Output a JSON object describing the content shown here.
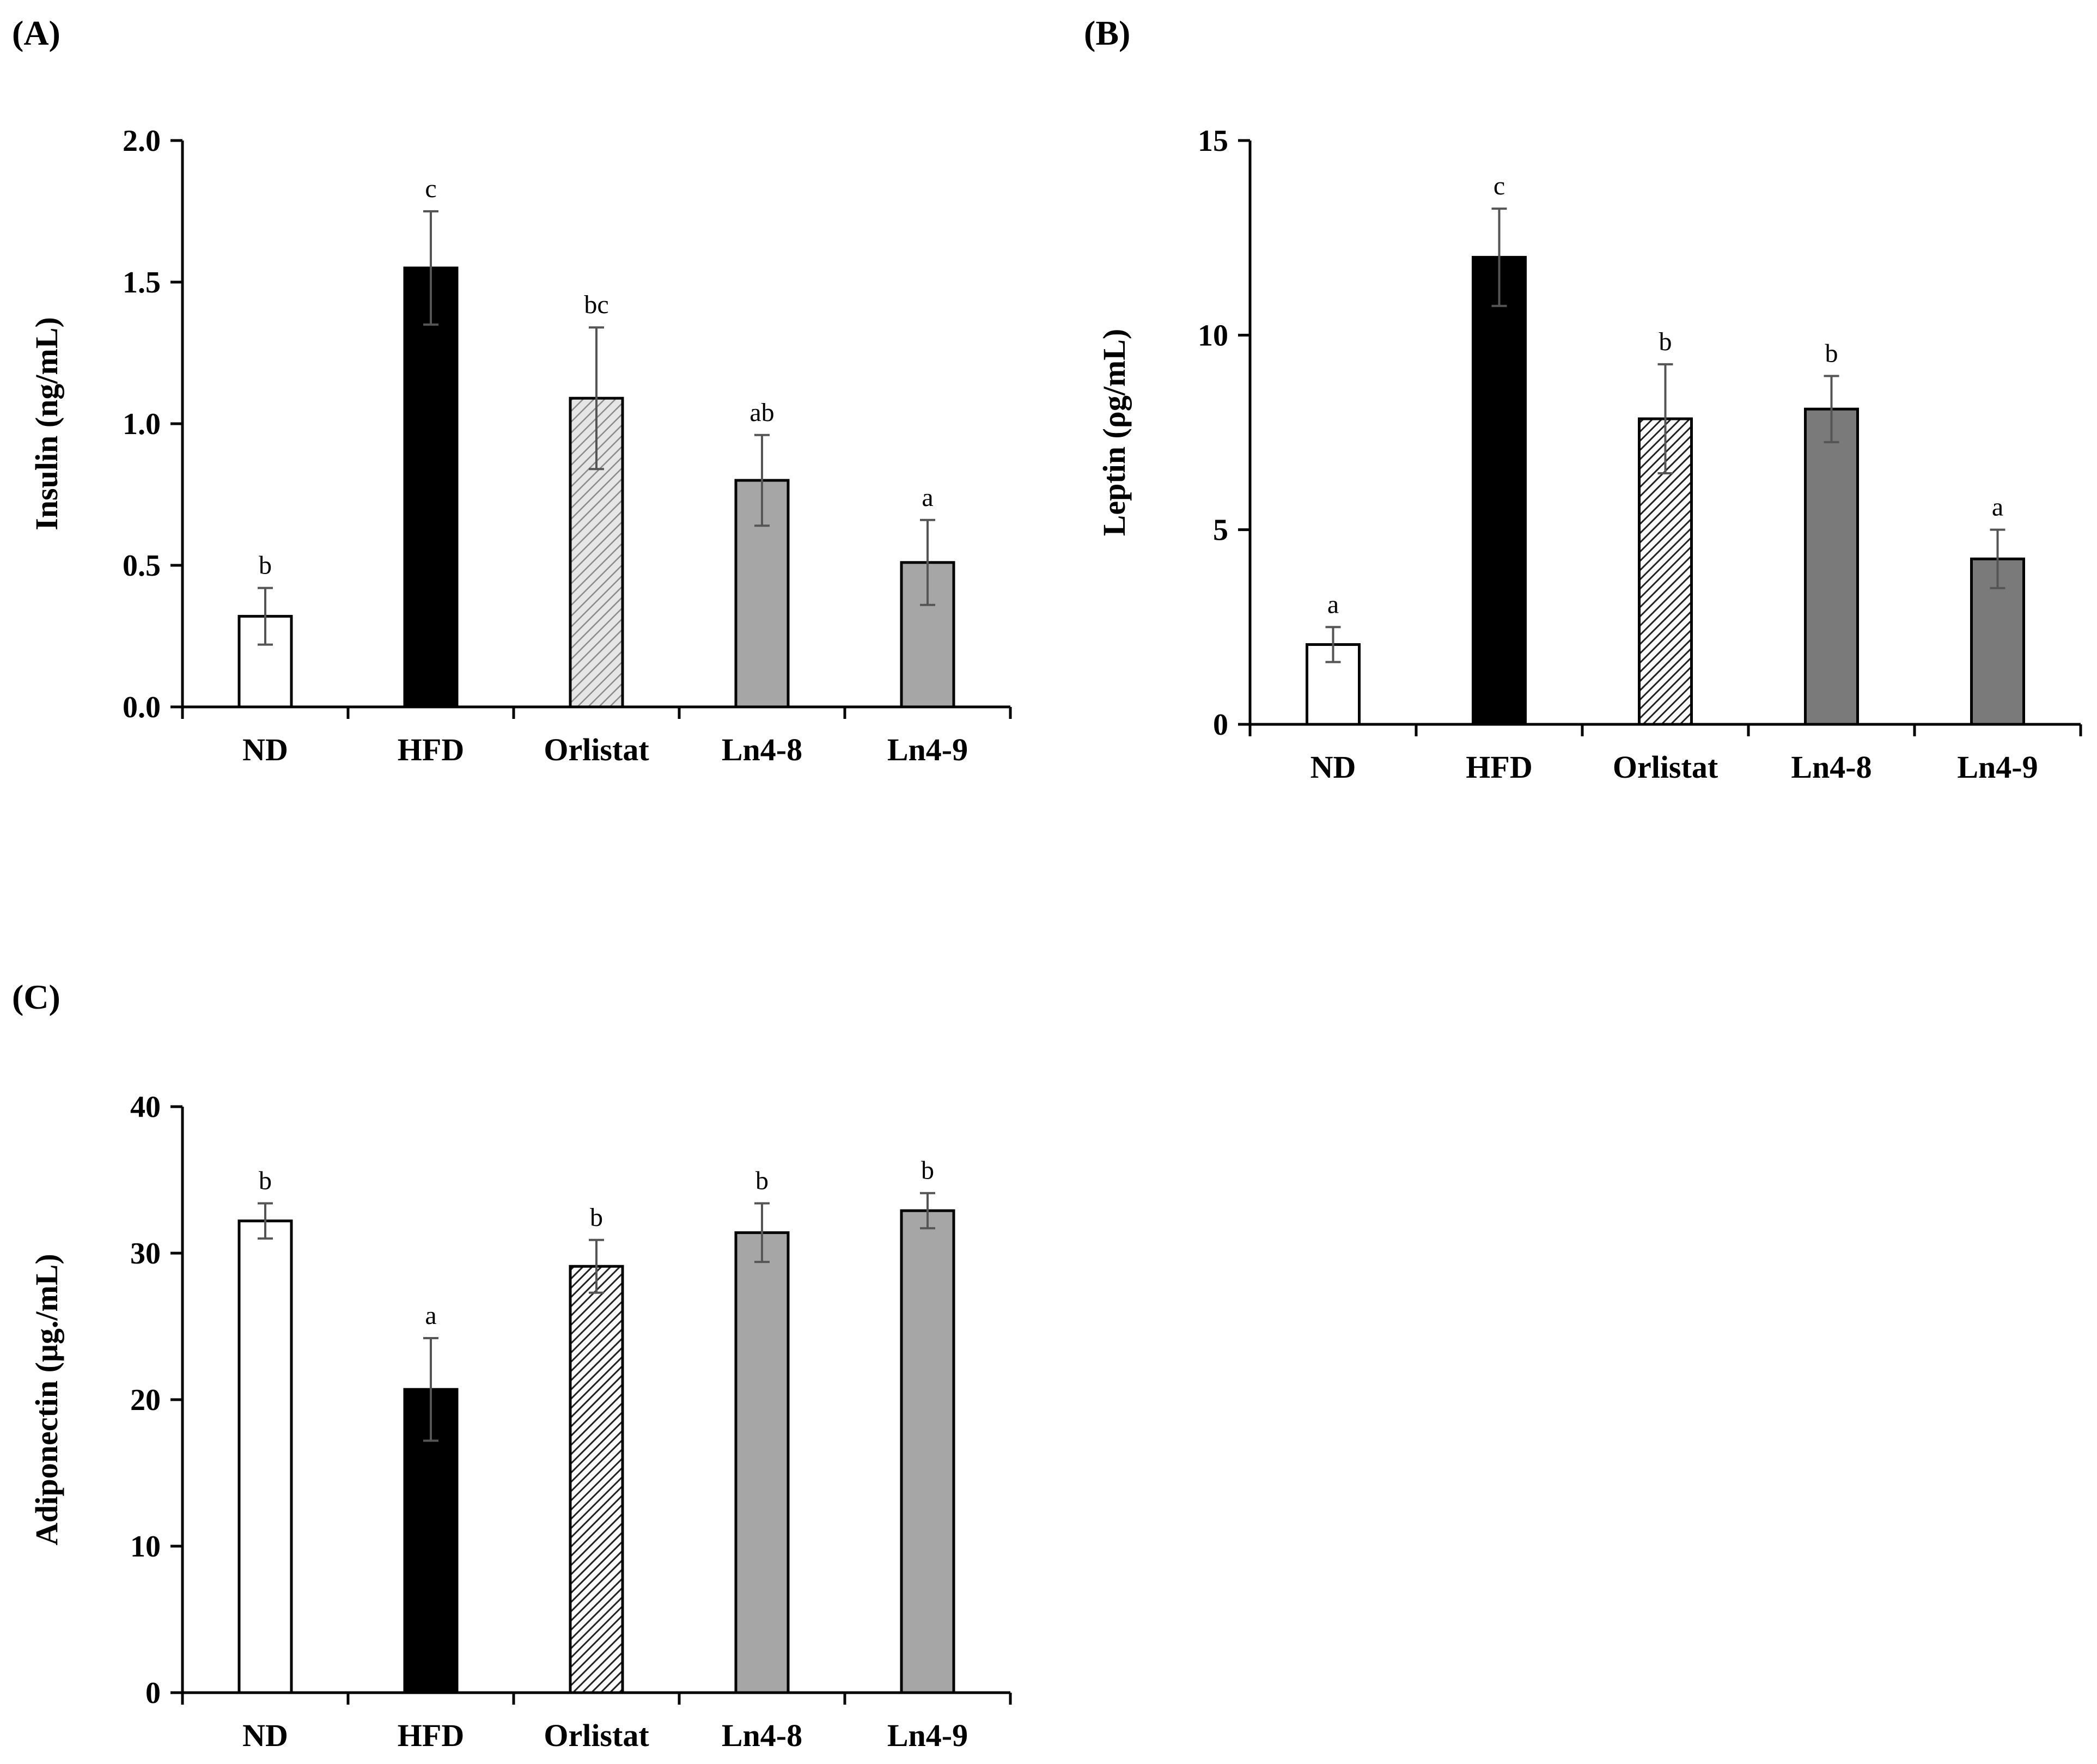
{
  "figure": {
    "panels": [
      "(A)",
      "(B)",
      "(C)"
    ]
  },
  "colors": {
    "ND": "#ffffff",
    "HFD": "#000000",
    "Orlistat_A": "#cfcfcf",
    "Orlistat_dense": "#555555",
    "Ln_light": "#a6a6a6",
    "Ln_dark": "#7a7a7a",
    "error_bar": "#555555"
  },
  "chart_data": [
    {
      "type": "bar",
      "panel": "(A)",
      "title": "",
      "xlabel": "",
      "ylabel": "Insulin (ng/mL)",
      "categories": [
        "ND",
        "HFD",
        "Orlistat",
        "Ln4-8",
        "Ln4-9"
      ],
      "values": [
        0.32,
        1.55,
        1.09,
        0.8,
        0.51
      ],
      "errors": [
        0.1,
        0.2,
        0.25,
        0.16,
        0.15
      ],
      "significance": [
        "b",
        "c",
        "bc",
        "ab",
        "a"
      ],
      "ylim": [
        0,
        2.0
      ],
      "yticks": [
        0,
        0.5,
        1.0,
        1.5,
        2.0
      ],
      "ytick_labels": [
        "0.0",
        "0.5",
        "1.0",
        "1.5",
        "2.0"
      ],
      "fills": [
        "white",
        "black",
        "hatch-light",
        "gray-light",
        "gray-light"
      ]
    },
    {
      "type": "bar",
      "panel": "(B)",
      "title": "",
      "xlabel": "",
      "ylabel": "Leptin (ρg/mL)",
      "categories": [
        "ND",
        "HFD",
        "Orlistat",
        "Ln4-8",
        "Ln4-9"
      ],
      "values": [
        2.05,
        12.0,
        7.85,
        8.1,
        4.25
      ],
      "errors": [
        0.45,
        1.25,
        1.4,
        0.85,
        0.75
      ],
      "significance": [
        "a",
        "c",
        "b",
        "b",
        "a"
      ],
      "ylim": [
        0,
        15
      ],
      "yticks": [
        0,
        5,
        10,
        15
      ],
      "ytick_labels": [
        "0",
        "5",
        "10",
        "15"
      ],
      "fills": [
        "white",
        "black",
        "hatch-dense",
        "gray-dark",
        "gray-dark"
      ]
    },
    {
      "type": "bar",
      "panel": "(C)",
      "title": "",
      "xlabel": "",
      "ylabel": "Adiponectin (μg./mL)",
      "categories": [
        "ND",
        "HFD",
        "Orlistat",
        "Ln4-8",
        "Ln4-9"
      ],
      "values": [
        32.2,
        20.7,
        29.1,
        31.4,
        32.9
      ],
      "errors": [
        1.2,
        3.5,
        1.8,
        2.0,
        1.2
      ],
      "significance": [
        "b",
        "a",
        "b",
        "b",
        "b"
      ],
      "ylim": [
        0,
        40
      ],
      "yticks": [
        0,
        10,
        20,
        30,
        40
      ],
      "ytick_labels": [
        "0",
        "10",
        "20",
        "30",
        "40"
      ],
      "fills": [
        "white",
        "black",
        "hatch-dense",
        "gray-light",
        "gray-light"
      ]
    }
  ]
}
